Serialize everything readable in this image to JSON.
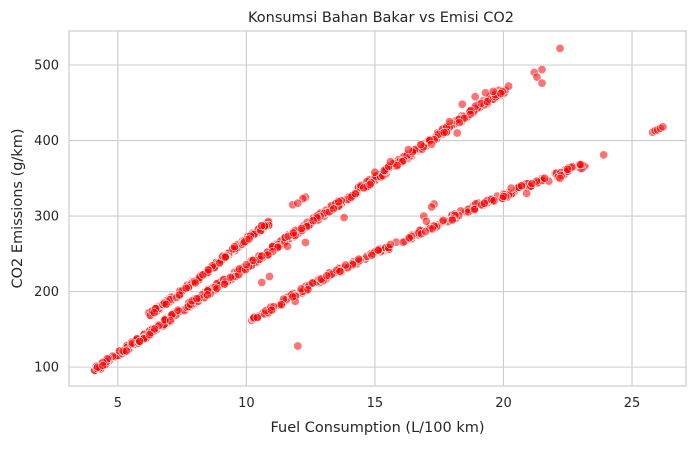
{
  "chart_data": {
    "type": "scatter",
    "title": "Konsumsi Bahan Bakar vs Emisi CO2",
    "xlabel": "Fuel Consumption (L/100 km)",
    "ylabel": "CO2 Emissions (g/km)",
    "xlim": [
      3.1,
      27.1
    ],
    "ylim": [
      75,
      545
    ],
    "xticks": [
      5,
      10,
      15,
      20,
      25
    ],
    "yticks": [
      100,
      200,
      300,
      400,
      500
    ],
    "grid": true,
    "point_color": "#ff0000",
    "series": [
      {
        "trend_upper": [
          [
            6.2,
            170
          ],
          [
            6.8,
            183
          ],
          [
            7.4,
            198
          ],
          [
            8.0,
            214
          ],
          [
            8.6,
            230
          ],
          [
            9.2,
            248
          ],
          [
            9.8,
            263
          ],
          [
            10.4,
            280
          ],
          [
            10.9,
            291
          ]
        ],
        "trend_middle": [
          [
            4.1,
            96
          ],
          [
            5.0,
            117
          ],
          [
            6.0,
            140
          ],
          [
            7.0,
            164
          ],
          [
            8.0,
            187
          ],
          [
            9.0,
            210
          ],
          [
            10.0,
            233
          ],
          [
            11.0,
            256
          ],
          [
            12.0,
            280
          ],
          [
            13.0,
            303
          ],
          [
            14.0,
            326
          ],
          [
            15.0,
            350
          ],
          [
            16.0,
            373
          ],
          [
            17.0,
            396
          ],
          [
            18.0,
            420
          ],
          [
            19.0,
            444
          ],
          [
            19.6,
            458
          ],
          [
            20.2,
            470
          ]
        ],
        "trend_lower": [
          [
            10.2,
            163
          ],
          [
            11.0,
            178
          ],
          [
            12.0,
            198
          ],
          [
            13.0,
            218
          ],
          [
            14.0,
            235
          ],
          [
            15.0,
            251
          ],
          [
            16.0,
            266
          ],
          [
            17.0,
            282
          ],
          [
            18.0,
            298
          ],
          [
            19.0,
            314
          ],
          [
            20.0,
            326
          ],
          [
            21.0,
            342
          ],
          [
            21.8,
            350
          ],
          [
            22.6,
            362
          ],
          [
            23.2,
            368
          ]
        ],
        "points": [
          [
            12.3,
            325
          ],
          [
            12.2,
            323
          ],
          [
            11.8,
            315
          ],
          [
            12.0,
            317
          ],
          [
            13.8,
            298
          ],
          [
            11.6,
            260
          ],
          [
            12.3,
            265
          ],
          [
            12.0,
            128
          ],
          [
            11.9,
            187
          ],
          [
            11.8,
            193
          ],
          [
            10.6,
            212
          ],
          [
            10.9,
            220
          ],
          [
            17.9,
            425
          ],
          [
            18.2,
            410
          ],
          [
            18.4,
            448
          ],
          [
            17.2,
            395
          ],
          [
            16.3,
            388
          ],
          [
            15.6,
            372
          ],
          [
            15.0,
            358
          ],
          [
            18.9,
            458
          ],
          [
            19.3,
            463
          ],
          [
            19.6,
            465
          ],
          [
            20.2,
            472
          ],
          [
            19.9,
            462
          ],
          [
            21.2,
            490
          ],
          [
            21.5,
            494
          ],
          [
            21.3,
            484
          ],
          [
            21.5,
            476
          ],
          [
            22.2,
            522
          ],
          [
            20.3,
            337
          ],
          [
            20.7,
            340
          ],
          [
            21.1,
            343
          ],
          [
            20.9,
            330
          ],
          [
            22.2,
            350
          ],
          [
            22.5,
            362
          ],
          [
            23.0,
            368
          ],
          [
            23.9,
            381
          ],
          [
            20.0,
            326
          ],
          [
            25.8,
            411
          ],
          [
            25.9,
            413
          ],
          [
            26.0,
            414
          ],
          [
            26.1,
            416
          ],
          [
            26.2,
            418
          ],
          [
            17.3,
            316
          ],
          [
            17.2,
            312
          ],
          [
            16.9,
            300
          ],
          [
            17.0,
            293
          ]
        ]
      }
    ]
  }
}
